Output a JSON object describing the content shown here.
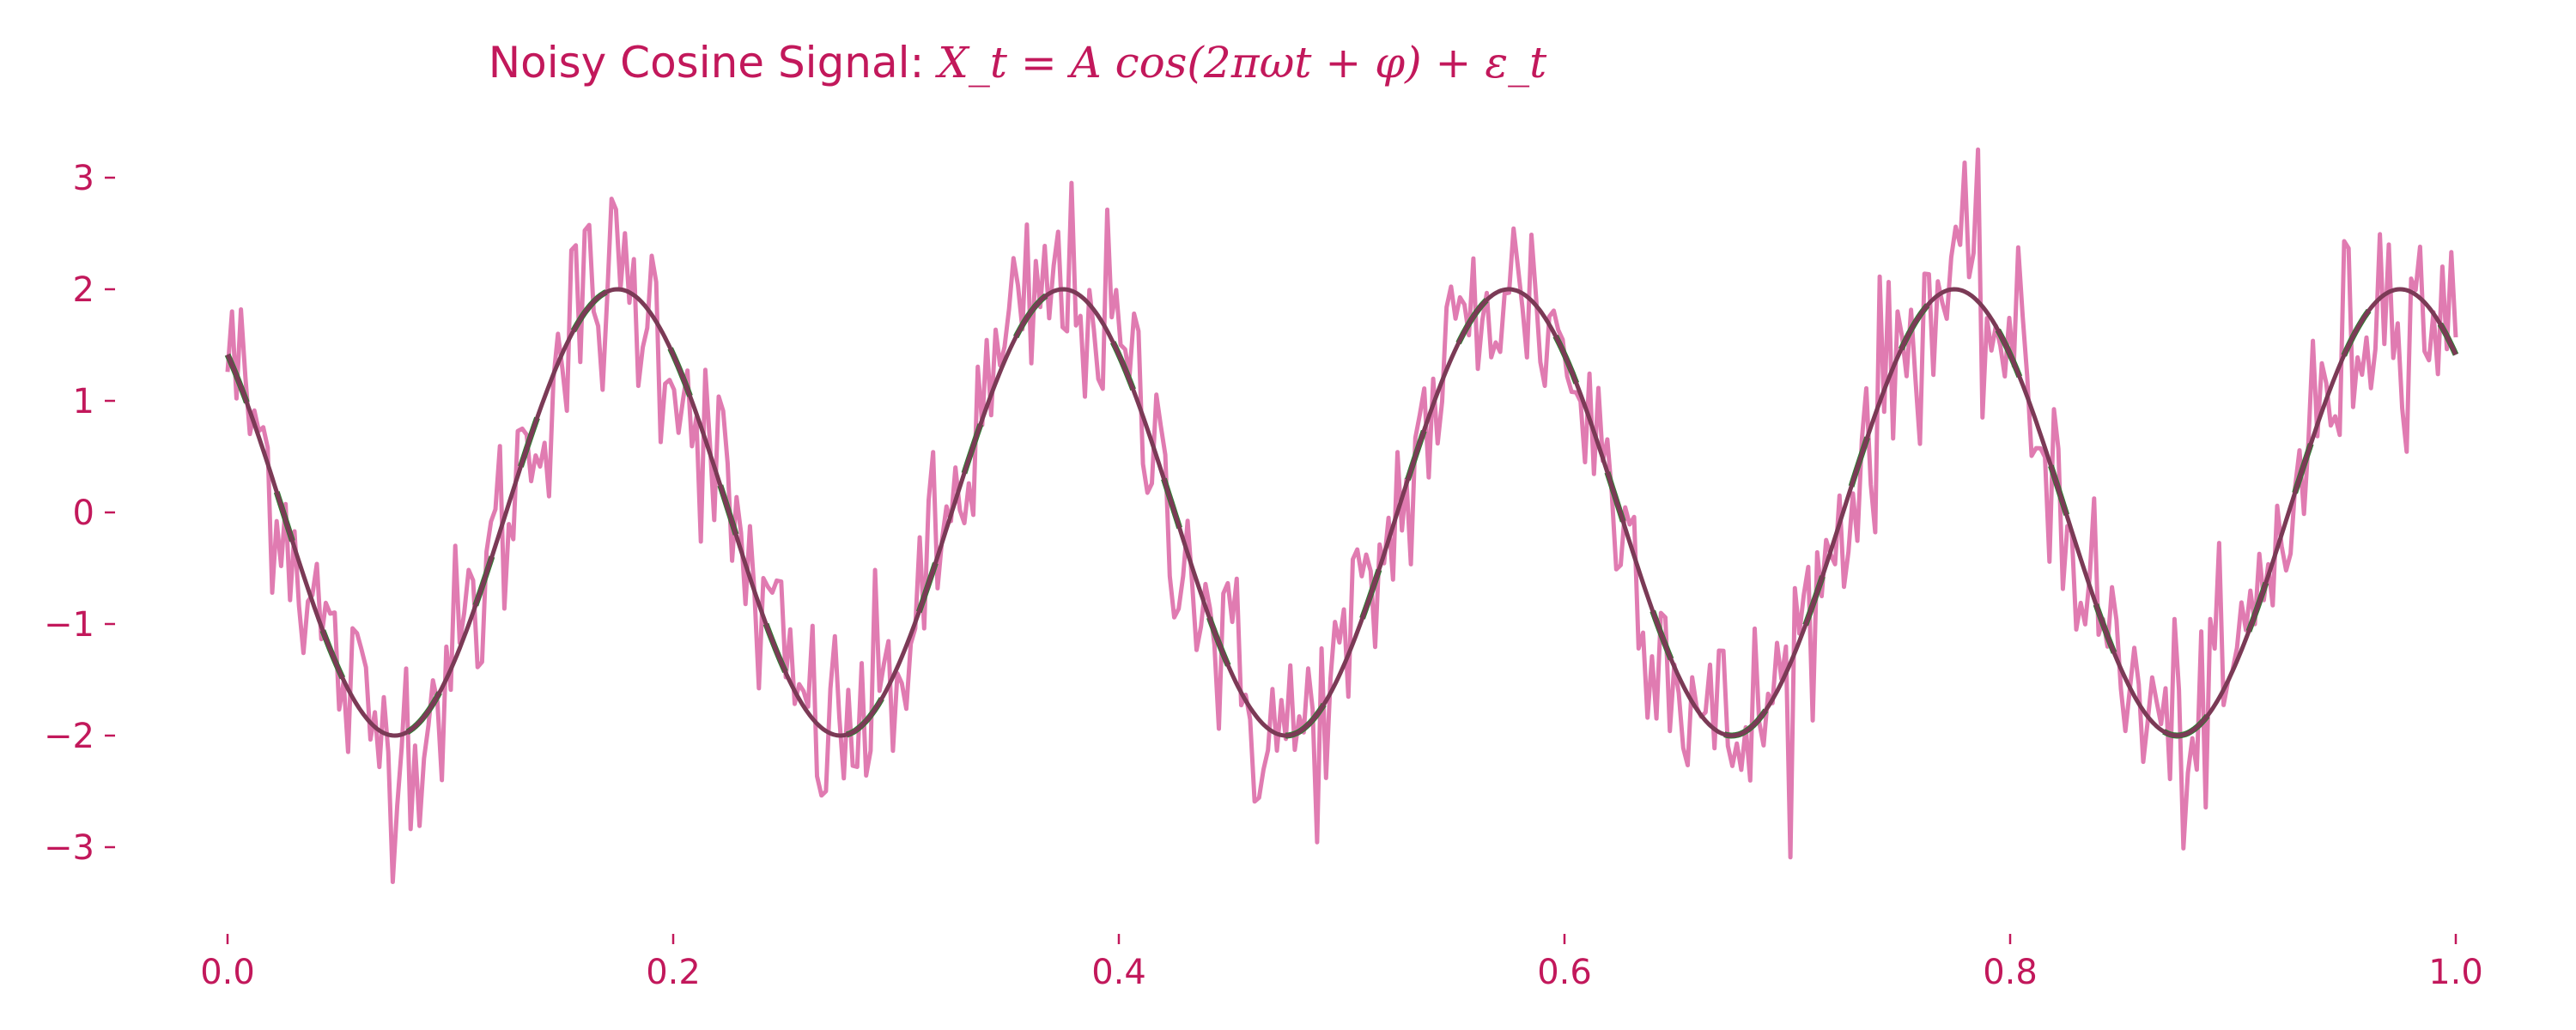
{
  "chart_data": {
    "type": "line",
    "title_text": "Noisy Cosine Signal: ",
    "title_math": "X_t = A cos(2πωt + φ) + ε_t",
    "xlabel": "",
    "ylabel": "",
    "xlim": [
      0.0,
      1.0
    ],
    "ylim": [
      -3.5,
      3.5
    ],
    "x_ticks": [
      0.0,
      0.2,
      0.4,
      0.6,
      0.8,
      1.0
    ],
    "x_tick_labels": [
      "0.0",
      "0.2",
      "0.4",
      "0.6",
      "0.8",
      "1.0"
    ],
    "y_ticks": [
      3,
      2,
      1,
      0,
      -1,
      -2,
      -3
    ],
    "y_tick_labels": [
      "3",
      "2",
      "1",
      "0",
      "−1",
      "−2",
      "−3"
    ],
    "grid": false,
    "legend": "none",
    "series": [
      {
        "kind": "noisy",
        "color": "#e07bb1",
        "amplitude": 2,
        "frequency": 5,
        "phase": 0.7854,
        "noise_sd": 0.5,
        "n_points": 500
      },
      {
        "kind": "true-green",
        "color": "#2e7d32",
        "amplitude": 2,
        "frequency": 5,
        "phase": 0.7854
      },
      {
        "kind": "true-dark",
        "color": "#7b3a56",
        "amplitude": 2,
        "frequency": 5,
        "phase": 0.7854
      }
    ]
  },
  "colors": {
    "text": "#c2185b",
    "noisy_line": "#e07bb1",
    "true_line_under": "#2e7d32",
    "true_line": "#7b3a56"
  }
}
